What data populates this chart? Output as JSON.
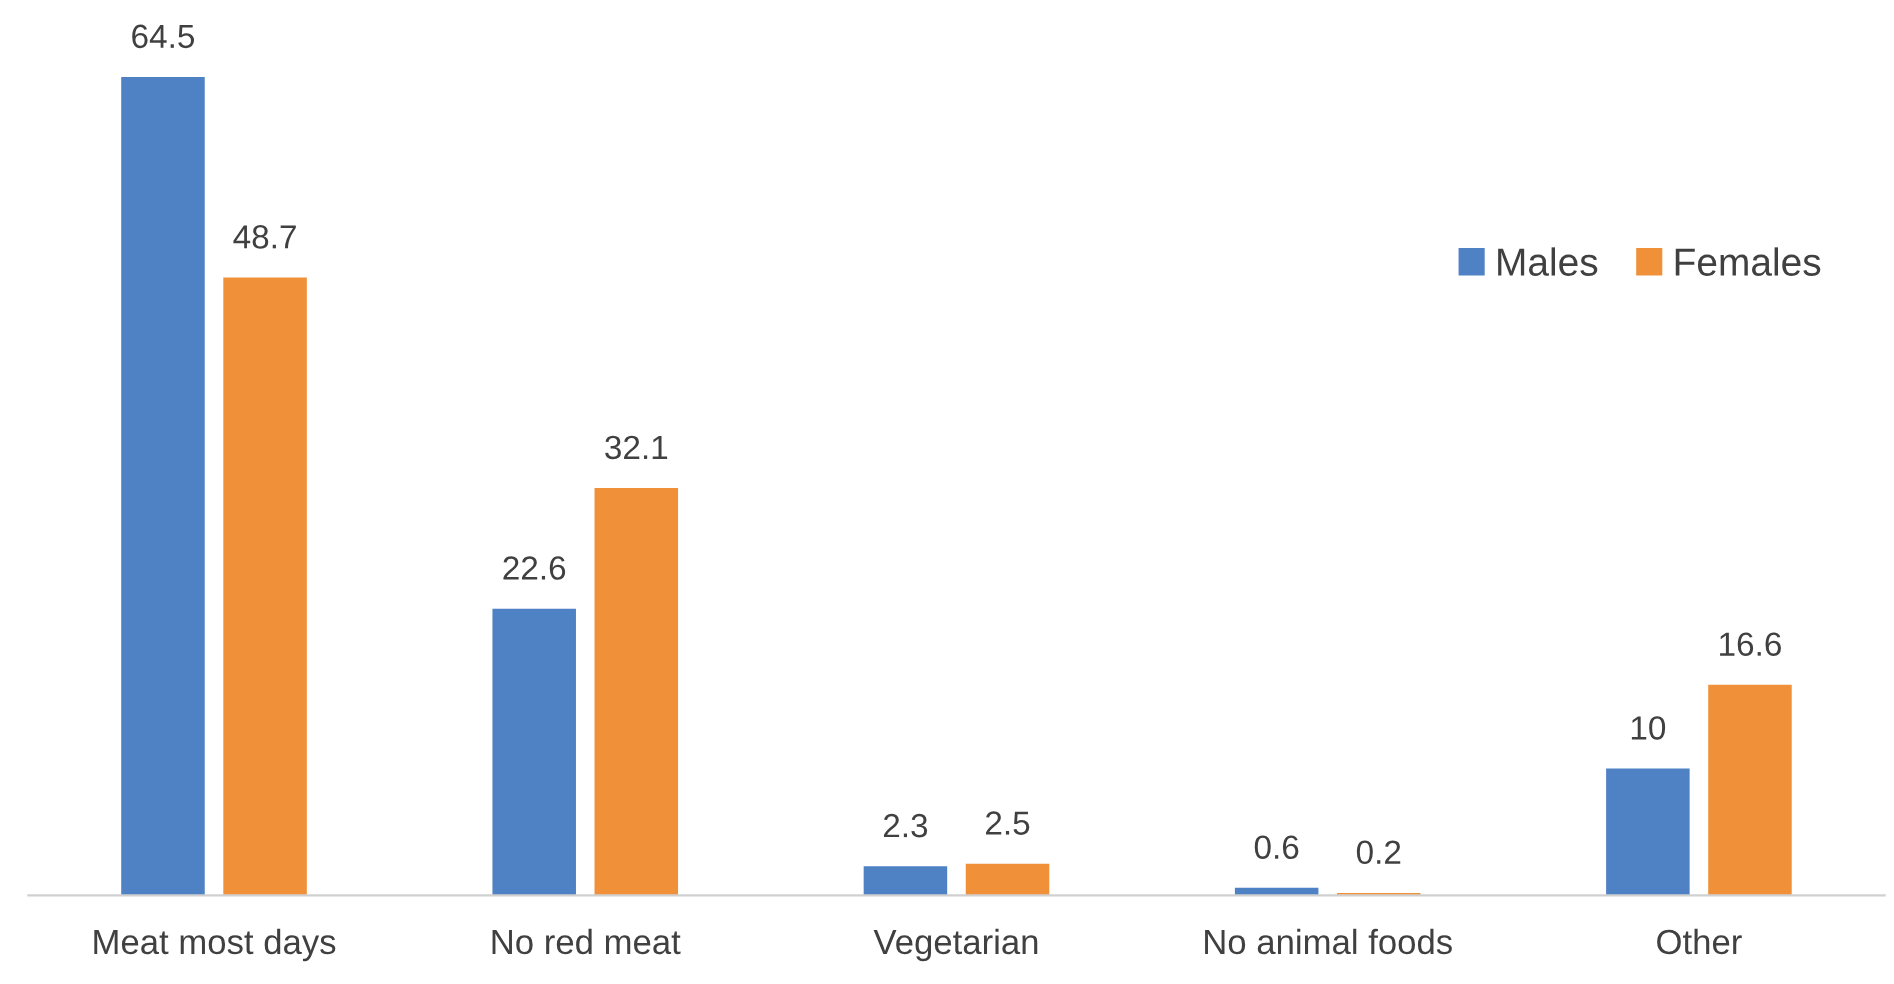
{
  "chart_data": {
    "type": "bar",
    "categories": [
      "Meat most days",
      "No red meat",
      "Vegetarian",
      "No animal foods",
      "Other"
    ],
    "series": [
      {
        "name": "Males",
        "color": "#4f81c5",
        "values": [
          64.5,
          22.6,
          2.3,
          0.6,
          10
        ]
      },
      {
        "name": "Females",
        "color": "#f0913a",
        "values": [
          48.7,
          32.1,
          2.5,
          0.2,
          16.6
        ]
      }
    ],
    "data_labels": true,
    "legend": "top right",
    "grid": false
  }
}
